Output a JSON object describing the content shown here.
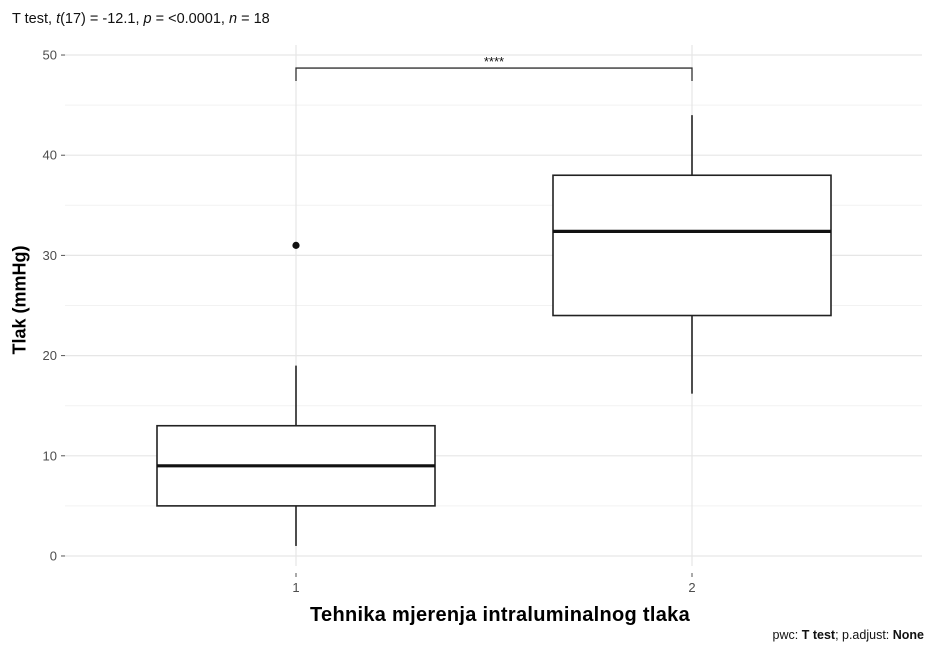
{
  "subtitle": {
    "prefix": "T test, ",
    "t_symbol": "t",
    "df_part": "(17) = -12.1, ",
    "p_symbol": "p",
    "p_part": " = <0.0001, ",
    "n_symbol": "n",
    "n_part": " = 18"
  },
  "caption": {
    "prefix": "pwc: ",
    "method": "T test",
    "middle": "; p.adjust: ",
    "adjust": "None"
  },
  "chart_data": {
    "type": "boxplot",
    "title": "",
    "xlabel": "Tehnika mjerenja intraluminalnog  tlaka",
    "ylabel": "Tlak (mmHg)",
    "categories": [
      "1",
      "2"
    ],
    "ylim": [
      -1,
      51
    ],
    "yticks": [
      0,
      10,
      20,
      30,
      40,
      50
    ],
    "grid": true,
    "boxes": [
      {
        "category": "1",
        "whisker_low": 1,
        "q1": 5,
        "median": 9,
        "q3": 13,
        "whisker_high": 19,
        "outliers": [
          31
        ]
      },
      {
        "category": "2",
        "whisker_low": 16.2,
        "q1": 24,
        "median": 32.4,
        "q3": 38,
        "whisker_high": 44,
        "outliers": []
      }
    ],
    "significance": {
      "from": "1",
      "to": "2",
      "y": 48.7,
      "label": "****"
    }
  }
}
